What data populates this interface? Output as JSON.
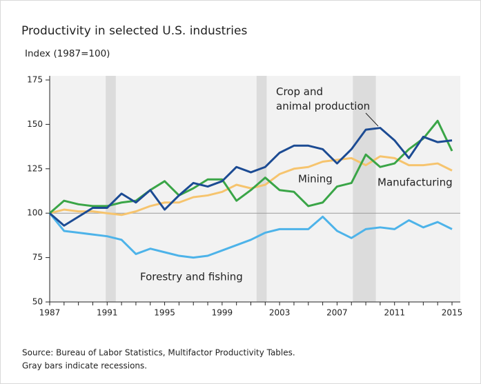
{
  "chart_data": {
    "type": "line",
    "title": "Productivity in selected U.S. industries",
    "subtitle": "Index (1987=100)",
    "source": "Source: Bureau of Labor Statistics, Multifactor Productivity Tables.",
    "note": "Gray bars indicate recessions.",
    "x": [
      1987,
      1988,
      1989,
      1990,
      1991,
      1992,
      1993,
      1994,
      1995,
      1996,
      1997,
      1998,
      1999,
      2000,
      2001,
      2002,
      2003,
      2004,
      2005,
      2006,
      2007,
      2008,
      2009,
      2010,
      2011,
      2012,
      2013,
      2014,
      2015
    ],
    "series": [
      {
        "name": "Crop and animal production",
        "color": "#1c4b93",
        "values": [
          100,
          93,
          98,
          103,
          103,
          111,
          106,
          113,
          102,
          110,
          117,
          115,
          118,
          126,
          123,
          126,
          134,
          138,
          138,
          136,
          128,
          136,
          147,
          148,
          141,
          131,
          143,
          140,
          141
        ]
      },
      {
        "name": "Mining",
        "color": "#3aa547",
        "values": [
          100,
          107,
          105,
          104,
          104,
          106,
          107,
          113,
          118,
          110,
          114,
          119,
          119,
          107,
          113,
          120,
          113,
          112,
          104,
          106,
          115,
          117,
          133,
          126,
          128,
          136,
          142,
          152,
          135
        ]
      },
      {
        "name": "Manufacturing",
        "color": "#f6c46e",
        "values": [
          100,
          102,
          101,
          101,
          100,
          99,
          101,
          104,
          106,
          106,
          109,
          110,
          112,
          116,
          114,
          116,
          122,
          125,
          126,
          129,
          130,
          131,
          127,
          132,
          131,
          127,
          127,
          128,
          124
        ]
      },
      {
        "name": "Forestry and fishing",
        "color": "#4db3e9",
        "values": [
          100,
          90,
          89,
          88,
          87,
          85,
          77,
          80,
          78,
          76,
          75,
          76,
          79,
          82,
          85,
          89,
          91,
          91,
          91,
          98,
          90,
          86,
          91,
          92,
          91,
          96,
          92,
          95,
          91
        ]
      }
    ],
    "recessions": [
      [
        1990.9,
        1991.6
      ],
      [
        2001.4,
        2002.1
      ],
      [
        2008.1,
        2009.7
      ]
    ],
    "reference_line": 100,
    "xlim": [
      1987,
      2015
    ],
    "ylim": [
      50,
      175
    ],
    "xticks": [
      1987,
      1991,
      1995,
      1999,
      2003,
      2007,
      2011,
      2015
    ],
    "yticks": [
      50,
      75,
      100,
      125,
      150,
      175
    ]
  }
}
